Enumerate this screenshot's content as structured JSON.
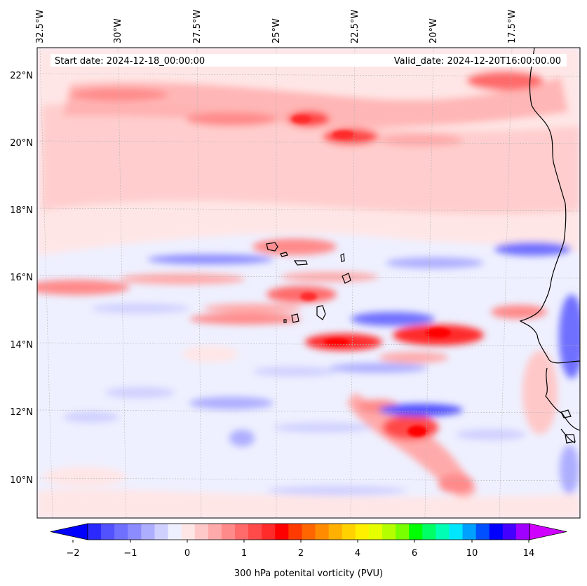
{
  "map": {
    "start_label": "Start date: 2024-12-18_00:00:00",
    "valid_label": "Valid_date: 2024-12-20T16:00:00.00",
    "lon_labels": [
      "32.5°W",
      "30°W",
      "27.5°W",
      "25°W",
      "22.5°W",
      "20°W",
      "17.5°W"
    ],
    "lat_labels": [
      "22°N",
      "20°N",
      "18°N",
      "16°N",
      "14°N",
      "12°N",
      "10°N"
    ],
    "coastline_color": "#000000",
    "background_color": "#eef0ff"
  },
  "colorbar": {
    "label": "300 hPa potenital vorticity (PVU)",
    "tick_labels": [
      "−2",
      "−1",
      "0",
      "1",
      "2",
      "4",
      "6",
      "10",
      "14"
    ],
    "colors": [
      "#0000ff",
      "#2a2aff",
      "#5252ff",
      "#7070ff",
      "#8c8cff",
      "#aeaeff",
      "#d0d0ff",
      "#eef0ff",
      "#ffe6e6",
      "#ffc8c8",
      "#ffaaaa",
      "#ff8a8a",
      "#ff6a6a",
      "#ff4a4a",
      "#ff2a2a",
      "#ff0000",
      "#ff3a00",
      "#ff6600",
      "#ff8c00",
      "#ffb000",
      "#ffd200",
      "#fff000",
      "#e6ff00",
      "#b4ff00",
      "#78ff00",
      "#00ff00",
      "#00ff64",
      "#00ffb4",
      "#00e6ff",
      "#00a0ff",
      "#0050ff",
      "#0000ff",
      "#4400ff",
      "#a000ff",
      "#d000ff"
    ]
  }
}
